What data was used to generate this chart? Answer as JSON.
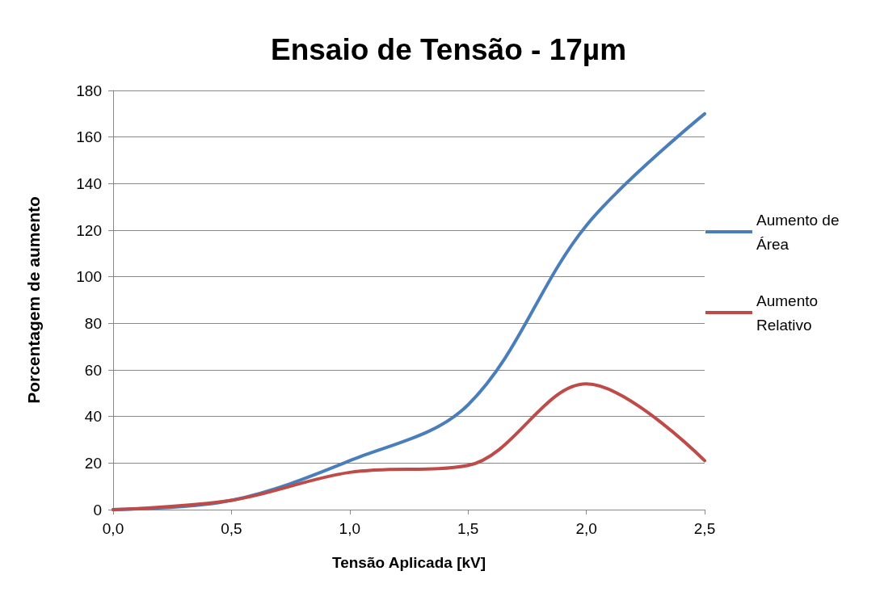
{
  "chart_data": {
    "type": "line",
    "title": "Ensaio de Tensão - 17µm",
    "xlabel": "Tensão Aplicada [kV]",
    "ylabel": "Porcentagem de aumento",
    "categories": [
      "0,0",
      "0,5",
      "1,0",
      "1,5",
      "2,0",
      "2,5"
    ],
    "series": [
      {
        "name": "Aumento de Área",
        "color": "#4a7ebb",
        "values": [
          0,
          4,
          21,
          45,
          122,
          170
        ]
      },
      {
        "name": "Aumento Relativo",
        "color": "#be4b48",
        "values": [
          0,
          4,
          16,
          19,
          54,
          21
        ]
      }
    ],
    "ylim": [
      0,
      180
    ],
    "yticks": [
      0,
      20,
      40,
      60,
      80,
      100,
      120,
      140,
      160,
      180
    ],
    "grid": "y",
    "legend": "right",
    "marker": "none",
    "line_style": "solid"
  }
}
